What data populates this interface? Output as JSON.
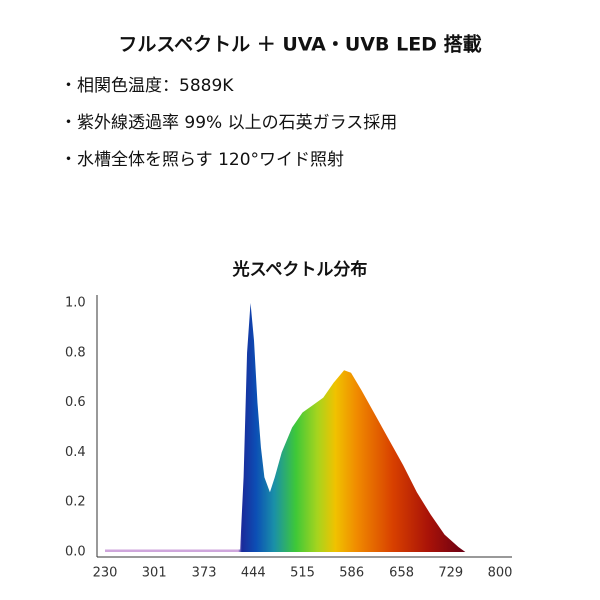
{
  "header": {
    "title": "フルスペクトル ＋ UVA・UVB LED 搭載",
    "bullets": [
      "・相関色温度：5889K",
      "・紫外線透過率 99% 以上の石英ガラス採用",
      "・水槽全体を照らす 120°ワイド照射"
    ]
  },
  "chart_data": {
    "type": "area",
    "title": "光スペクトル分布",
    "x": [
      230,
      300,
      380,
      425,
      430,
      435,
      440,
      445,
      450,
      455,
      460,
      468,
      475,
      485,
      500,
      515,
      530,
      545,
      560,
      575,
      585,
      600,
      620,
      640,
      660,
      680,
      700,
      720,
      740,
      750
    ],
    "values": [
      0.01,
      0.01,
      0.01,
      0.01,
      0.3,
      0.8,
      1.0,
      0.85,
      0.6,
      0.42,
      0.3,
      0.24,
      0.3,
      0.4,
      0.5,
      0.56,
      0.59,
      0.62,
      0.68,
      0.73,
      0.72,
      0.65,
      0.55,
      0.45,
      0.35,
      0.24,
      0.15,
      0.07,
      0.02,
      0.0
    ],
    "xlim": [
      230,
      800
    ],
    "xticks": [
      230,
      301,
      373,
      444,
      515,
      586,
      658,
      729,
      800
    ],
    "ylim": [
      0,
      1
    ],
    "yticks": [
      {
        "value": 0,
        "label": "0.0"
      },
      0.2,
      0.4,
      0.6,
      0.8,
      {
        "value": 1,
        "label": "1.0"
      }
    ]
  }
}
